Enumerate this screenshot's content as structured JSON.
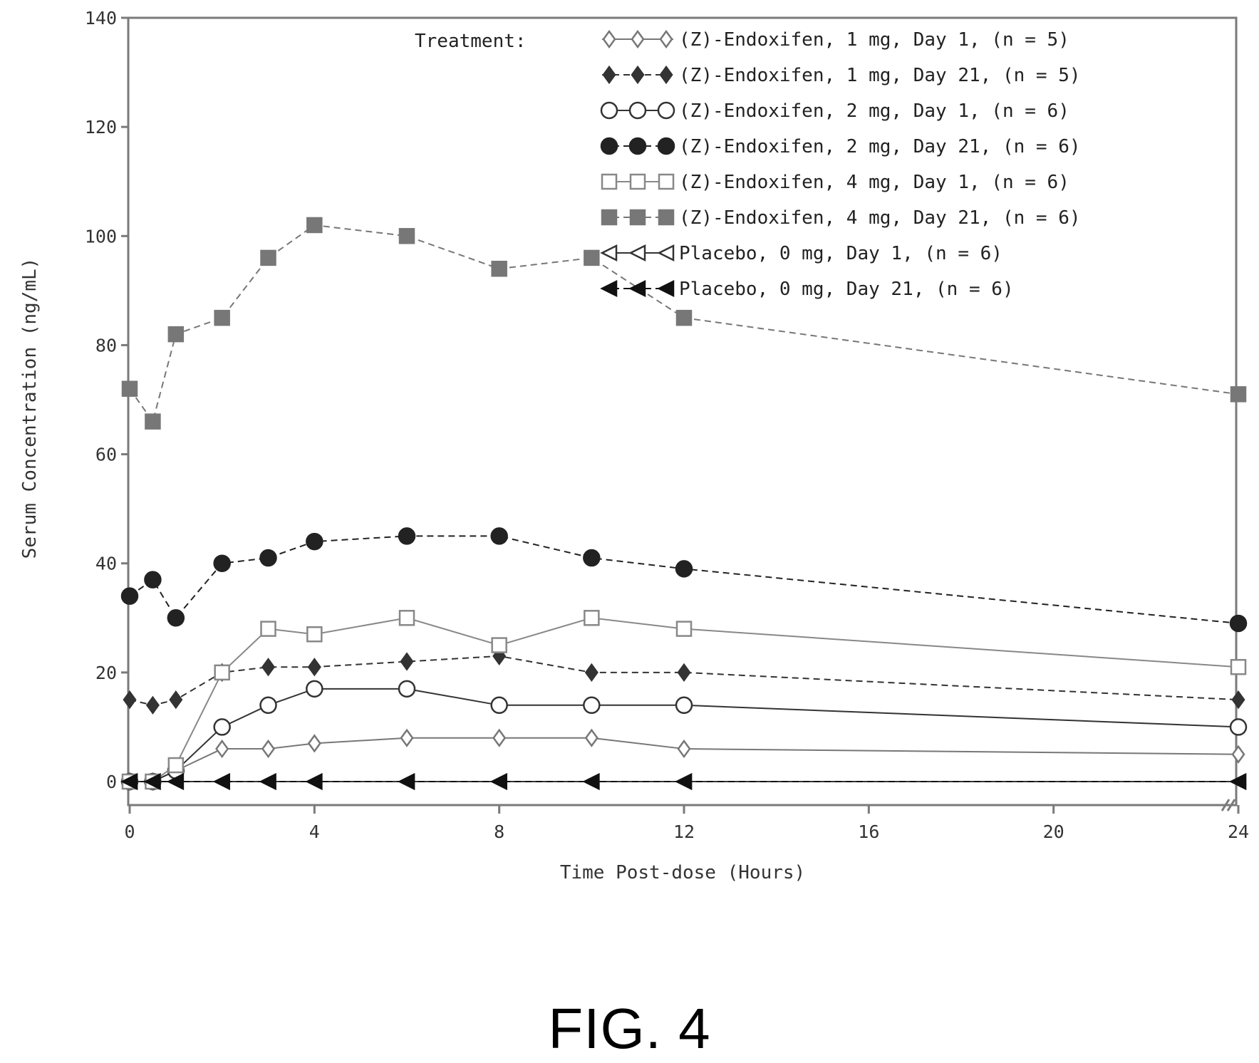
{
  "figure_label": "FIG. 4",
  "chart_data": {
    "type": "line",
    "title": "",
    "xlabel": "Time Post-dose (Hours)",
    "ylabel": "Serum Concentration (ng/mL)",
    "xlim": [
      0,
      24
    ],
    "ylim": [
      0,
      140
    ],
    "x_axis_style": "broken",
    "x_ticks": [
      0,
      4,
      8,
      12,
      16,
      20,
      24
    ],
    "y_ticks": [
      0,
      20,
      40,
      60,
      80,
      100,
      120,
      140
    ],
    "grid": false,
    "legend_title": "Treatment:",
    "legend_position": "top-right",
    "series": [
      {
        "name": "(Z)-Endoxifen, 1 mg, Day 1, (n = 5)",
        "marker": "diamond",
        "fill": "open",
        "line": "solid",
        "color": "#777777",
        "x": [
          0,
          0.5,
          1,
          2,
          3,
          4,
          6,
          8,
          10,
          12,
          24
        ],
        "y": [
          0,
          0,
          2,
          6,
          6,
          7,
          8,
          8,
          8,
          6,
          5
        ]
      },
      {
        "name": "(Z)-Endoxifen, 1 mg, Day 21, (n = 5)",
        "marker": "diamond",
        "fill": "filled",
        "line": "dashed",
        "color": "#333333",
        "x": [
          0,
          0.5,
          1,
          2,
          3,
          4,
          6,
          8,
          10,
          12,
          24
        ],
        "y": [
          15,
          14,
          15,
          20,
          21,
          21,
          22,
          23,
          20,
          20,
          15
        ]
      },
      {
        "name": "(Z)-Endoxifen, 2 mg, Day 1, (n = 6)",
        "marker": "circle",
        "fill": "open",
        "line": "solid",
        "color": "#333333",
        "x": [
          0,
          0.5,
          1,
          2,
          3,
          4,
          6,
          8,
          10,
          12,
          24
        ],
        "y": [
          0,
          0,
          2,
          10,
          14,
          17,
          17,
          14,
          14,
          14,
          10
        ]
      },
      {
        "name": "(Z)-Endoxifen, 2 mg, Day 21, (n = 6)",
        "marker": "circle",
        "fill": "filled",
        "line": "dashed",
        "color": "#222222",
        "x": [
          0,
          0.5,
          1,
          2,
          3,
          4,
          6,
          8,
          10,
          12,
          24
        ],
        "y": [
          34,
          37,
          30,
          40,
          41,
          44,
          45,
          45,
          41,
          39,
          29
        ]
      },
      {
        "name": "(Z)-Endoxifen, 4 mg, Day 1, (n = 6)",
        "marker": "square",
        "fill": "open",
        "line": "solid",
        "color": "#888888",
        "x": [
          0,
          0.5,
          1,
          2,
          3,
          4,
          6,
          8,
          10,
          12,
          24
        ],
        "y": [
          0,
          0,
          3,
          20,
          28,
          27,
          30,
          25,
          30,
          28,
          21
        ]
      },
      {
        "name": "(Z)-Endoxifen, 4 mg, Day 21, (n = 6)",
        "marker": "square",
        "fill": "filled",
        "line": "dashed",
        "color": "#777777",
        "x": [
          0,
          0.5,
          1,
          2,
          3,
          4,
          6,
          8,
          10,
          12,
          24
        ],
        "y": [
          72,
          66,
          82,
          85,
          96,
          102,
          100,
          94,
          96,
          85,
          71
        ]
      },
      {
        "name": "Placebo, 0 mg, Day 1, (n = 6)",
        "marker": "triangle-left",
        "fill": "open",
        "line": "solid",
        "color": "#333333",
        "x": [
          0,
          0.5,
          1,
          2,
          3,
          4,
          6,
          8,
          10,
          12,
          24
        ],
        "y": [
          0,
          0,
          0,
          0,
          0,
          0,
          0,
          0,
          0,
          0,
          0
        ]
      },
      {
        "name": "Placebo, 0 mg, Day 21, (n = 6)",
        "marker": "triangle-left",
        "fill": "filled",
        "line": "dashed",
        "color": "#111111",
        "x": [
          0,
          0.5,
          1,
          2,
          3,
          4,
          6,
          8,
          10,
          12,
          24
        ],
        "y": [
          0,
          0,
          0,
          0,
          0,
          0,
          0,
          0,
          0,
          0,
          0
        ]
      }
    ]
  }
}
